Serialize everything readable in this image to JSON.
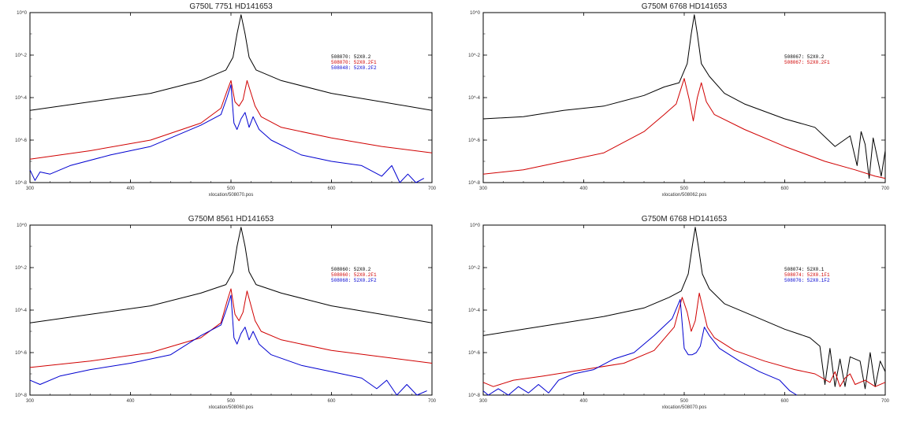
{
  "chart_data": [
    {
      "type": "line",
      "title": "G750L 7751 HD141653",
      "xlabel": "xlocation/508070.pos",
      "ylabel": "",
      "xlim": [
        300,
        700
      ],
      "ylog": true,
      "ylim_exp": [
        -8,
        0
      ],
      "xticks": [
        "300",
        "400",
        "500",
        "600",
        "700"
      ],
      "ytick_labels": [
        "10^0",
        "10^-2",
        "10^-4",
        "10^-6",
        "10^-8"
      ],
      "legend": [
        {
          "label": "508070: 52X0.2",
          "color": "#000000"
        },
        {
          "label": "508070: 52X0.2F1",
          "color": "#d00000"
        },
        {
          "label": "508048: 52X0.2F2",
          "color": "#0000d0"
        }
      ],
      "series": [
        {
          "color": "#000000",
          "x": [
            300,
            360,
            420,
            470,
            495,
            502,
            506,
            510,
            514,
            518,
            525,
            550,
            600,
            650,
            700
          ],
          "y": [
            -4.6,
            -4.2,
            -3.8,
            -3.2,
            -2.7,
            -2.1,
            -1.0,
            -0.1,
            -1.0,
            -2.1,
            -2.7,
            -3.2,
            -3.8,
            -4.2,
            -4.6
          ]
        },
        {
          "color": "#d00000",
          "x": [
            300,
            360,
            420,
            470,
            490,
            496,
            500,
            504,
            508,
            512,
            516,
            520,
            524,
            530,
            550,
            600,
            650,
            700
          ],
          "y": [
            -6.9,
            -6.5,
            -6.0,
            -5.2,
            -4.5,
            -3.7,
            -3.2,
            -4.2,
            -4.4,
            -4.1,
            -3.2,
            -3.8,
            -4.4,
            -4.9,
            -5.4,
            -5.9,
            -6.3,
            -6.6
          ]
        },
        {
          "color": "#0000d0",
          "x": [
            300,
            305,
            310,
            320,
            340,
            380,
            420,
            470,
            490,
            496,
            500,
            503,
            506,
            510,
            514,
            518,
            522,
            528,
            540,
            570,
            600,
            630,
            650,
            660,
            668,
            676,
            684,
            692
          ],
          "y": [
            -7.4,
            -7.9,
            -7.5,
            -7.6,
            -7.2,
            -6.7,
            -6.3,
            -5.3,
            -4.8,
            -4.0,
            -3.4,
            -5.2,
            -5.5,
            -5.0,
            -4.7,
            -5.4,
            -4.9,
            -5.5,
            -6.0,
            -6.7,
            -7.0,
            -7.2,
            -7.7,
            -7.2,
            -8.0,
            -7.6,
            -8.0,
            -7.8
          ]
        }
      ]
    },
    {
      "type": "line",
      "title": "G750M 6768 HD141653",
      "xlabel": "xlocation/508062.pos",
      "ylabel": "",
      "xlim": [
        300,
        700
      ],
      "ylog": true,
      "ylim_exp": [
        -8,
        0
      ],
      "xticks": [
        "300",
        "400",
        "500",
        "600",
        "700"
      ],
      "ytick_labels": [
        "10^0",
        "10^-2",
        "10^-4",
        "10^-6",
        "10^-8"
      ],
      "legend": [
        {
          "label": "508067: 52X0.2",
          "color": "#000000"
        },
        {
          "label": "508067: 52X0.2F1",
          "color": "#d00000"
        }
      ],
      "series": [
        {
          "color": "#000000",
          "x": [
            300,
            340,
            380,
            420,
            460,
            480,
            495,
            503,
            507,
            510,
            513,
            517,
            525,
            540,
            560,
            600,
            630,
            650,
            665,
            672,
            676,
            680,
            684,
            688,
            692,
            696,
            700
          ],
          "y": [
            -5.0,
            -4.9,
            -4.6,
            -4.4,
            -3.9,
            -3.5,
            -3.3,
            -2.4,
            -1.0,
            -0.1,
            -1.0,
            -2.4,
            -3.0,
            -3.8,
            -4.3,
            -5.0,
            -5.4,
            -6.3,
            -5.8,
            -7.2,
            -5.6,
            -6.2,
            -7.8,
            -5.9,
            -6.8,
            -7.7,
            -6.5
          ]
        },
        {
          "color": "#d00000",
          "x": [
            300,
            340,
            380,
            420,
            460,
            480,
            492,
            500,
            505,
            509,
            513,
            517,
            522,
            530,
            560,
            600,
            640,
            670,
            690,
            700
          ],
          "y": [
            -7.6,
            -7.4,
            -7.0,
            -6.6,
            -5.6,
            -4.8,
            -4.3,
            -3.1,
            -4.1,
            -5.1,
            -4.0,
            -3.3,
            -4.2,
            -4.8,
            -5.5,
            -6.3,
            -7.0,
            -7.4,
            -7.7,
            -7.8
          ]
        }
      ]
    },
    {
      "type": "line",
      "title": "G750M 8561 HD141653",
      "xlabel": "xlocation/508060.pos",
      "ylabel": "",
      "xlim": [
        300,
        700
      ],
      "ylog": true,
      "ylim_exp": [
        -8,
        0
      ],
      "xticks": [
        "300",
        "400",
        "500",
        "600",
        "700"
      ],
      "ytick_labels": [
        "10^0",
        "10^-2",
        "10^-4",
        "10^-6",
        "10^-8"
      ],
      "legend": [
        {
          "label": "508060: 52X0.2",
          "color": "#000000"
        },
        {
          "label": "508060: 52X0.2F1",
          "color": "#d00000"
        },
        {
          "label": "508068: 52X0.2F2",
          "color": "#0000d0"
        }
      ],
      "series": [
        {
          "color": "#000000",
          "x": [
            300,
            360,
            420,
            470,
            495,
            502,
            506,
            510,
            514,
            518,
            525,
            550,
            600,
            650,
            700
          ],
          "y": [
            -4.6,
            -4.2,
            -3.8,
            -3.2,
            -2.8,
            -2.2,
            -1.0,
            -0.1,
            -1.0,
            -2.2,
            -2.8,
            -3.2,
            -3.8,
            -4.2,
            -4.6
          ]
        },
        {
          "color": "#d00000",
          "x": [
            300,
            360,
            420,
            470,
            490,
            496,
            500,
            504,
            508,
            512,
            516,
            520,
            524,
            530,
            550,
            600,
            650,
            700
          ],
          "y": [
            -6.7,
            -6.4,
            -6.0,
            -5.3,
            -4.6,
            -3.6,
            -3.0,
            -4.2,
            -4.5,
            -4.1,
            -3.1,
            -3.8,
            -4.5,
            -5.0,
            -5.4,
            -5.9,
            -6.2,
            -6.5
          ]
        },
        {
          "color": "#0000d0",
          "x": [
            300,
            310,
            330,
            360,
            400,
            440,
            470,
            490,
            496,
            500,
            503,
            506,
            510,
            514,
            518,
            522,
            528,
            540,
            570,
            600,
            630,
            645,
            655,
            665,
            675,
            685,
            695
          ],
          "y": [
            -7.3,
            -7.5,
            -7.1,
            -6.8,
            -6.5,
            -6.1,
            -5.2,
            -4.7,
            -3.9,
            -3.3,
            -5.3,
            -5.6,
            -5.1,
            -4.8,
            -5.4,
            -5.0,
            -5.6,
            -6.1,
            -6.6,
            -6.9,
            -7.2,
            -7.7,
            -7.3,
            -8.0,
            -7.5,
            -8.0,
            -7.8
          ]
        }
      ]
    },
    {
      "type": "line",
      "title": "G750M 6768 HD141653",
      "xlabel": "xlocation/508070.pos",
      "ylabel": "",
      "xlim": [
        300,
        700
      ],
      "ylog": true,
      "ylim_exp": [
        -8,
        0
      ],
      "xticks": [
        "300",
        "400",
        "500",
        "600",
        "700"
      ],
      "ytick_labels": [
        "10^0",
        "10^-2",
        "10^-4",
        "10^-6",
        "10^-8"
      ],
      "legend": [
        {
          "label": "508074: 52X0.1",
          "color": "#000000"
        },
        {
          "label": "508074: 52X0.1F1",
          "color": "#d00000"
        },
        {
          "label": "508076: 52X0.1F2",
          "color": "#0000d0"
        }
      ],
      "series": [
        {
          "color": "#000000",
          "x": [
            300,
            340,
            380,
            420,
            460,
            485,
            497,
            504,
            508,
            511,
            514,
            518,
            525,
            540,
            570,
            600,
            625,
            635,
            640,
            645,
            650,
            655,
            660,
            665,
            675,
            680,
            685,
            690,
            695,
            700
          ],
          "y": [
            -5.2,
            -4.9,
            -4.6,
            -4.3,
            -3.9,
            -3.4,
            -3.1,
            -2.3,
            -1.0,
            -0.1,
            -1.0,
            -2.3,
            -3.0,
            -3.7,
            -4.3,
            -4.9,
            -5.3,
            -5.7,
            -7.5,
            -5.8,
            -7.6,
            -6.3,
            -7.6,
            -6.2,
            -6.4,
            -7.7,
            -6.0,
            -7.6,
            -6.4,
            -6.9
          ]
        },
        {
          "color": "#d00000",
          "x": [
            300,
            310,
            330,
            360,
            400,
            440,
            470,
            490,
            498,
            503,
            507,
            511,
            515,
            519,
            523,
            530,
            550,
            580,
            610,
            630,
            645,
            650,
            655,
            660,
            665,
            670,
            680,
            690,
            700
          ],
          "y": [
            -7.4,
            -7.6,
            -7.3,
            -7.1,
            -6.8,
            -6.5,
            -5.9,
            -4.8,
            -3.4,
            -4.1,
            -5.0,
            -4.5,
            -3.2,
            -4.0,
            -4.8,
            -5.3,
            -5.9,
            -6.4,
            -6.8,
            -7.0,
            -7.4,
            -6.9,
            -7.6,
            -7.2,
            -7.0,
            -7.5,
            -7.3,
            -7.6,
            -7.4
          ]
        },
        {
          "color": "#0000d0",
          "x": [
            300,
            305,
            315,
            325,
            335,
            345,
            355,
            365,
            375,
            390,
            410,
            430,
            450,
            470,
            488,
            496,
            500,
            504,
            508,
            512,
            516,
            520,
            525,
            535,
            555,
            575,
            595,
            605,
            612
          ],
          "y": [
            -7.8,
            -8.0,
            -7.7,
            -8.0,
            -7.6,
            -7.9,
            -7.5,
            -7.9,
            -7.3,
            -7.0,
            -6.8,
            -6.3,
            -6.0,
            -5.2,
            -4.4,
            -3.5,
            -5.8,
            -6.1,
            -6.1,
            -6.0,
            -5.7,
            -4.8,
            -5.2,
            -5.8,
            -6.4,
            -6.9,
            -7.3,
            -7.8,
            -8.0
          ]
        }
      ]
    }
  ]
}
